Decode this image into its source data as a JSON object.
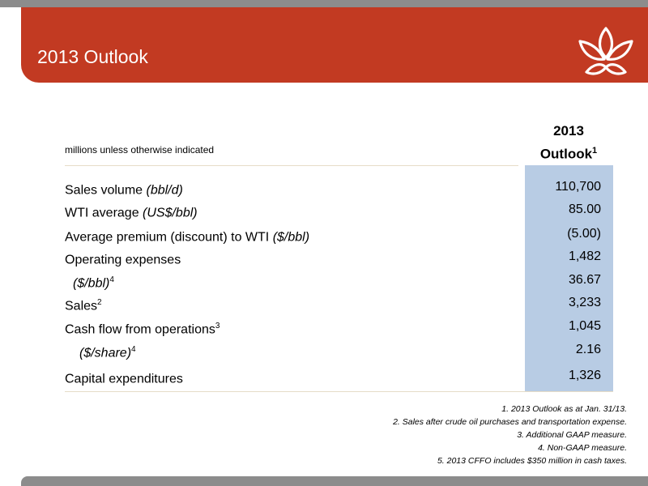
{
  "slide": {
    "title": "2013 Outlook"
  },
  "table": {
    "units_note": "millions unless otherwise indicated",
    "column_header": {
      "line1": "2013",
      "line2": "Outlook",
      "sup": "1"
    },
    "rows": [
      {
        "label": "Sales volume ",
        "label_em": "(bbl/d)",
        "sup": "",
        "value": "110,700"
      },
      {
        "label": "WTI average ",
        "label_em": "(US$/bbl)",
        "sup": "",
        "value": "85.00"
      },
      {
        "label": "Average premium (discount) to WTI ",
        "label_em": "($/bbl)",
        "sup": "",
        "value": "(5.00)"
      },
      {
        "label": "Operating expenses",
        "label_em": "",
        "sup": "",
        "value": "1,482"
      },
      {
        "label": "",
        "label_em": "($/bbl)",
        "sup": "4",
        "value": "36.67"
      },
      {
        "label": "Sales",
        "label_em": "",
        "sup": "2",
        "value": "3,233"
      },
      {
        "label": "Cash flow from operations",
        "label_em": "",
        "sup": "3",
        "value": "1,045"
      },
      {
        "label": "",
        "label_em": "($/share)",
        "sup": "4",
        "value": "2.16"
      },
      {
        "label": "Capital expenditures",
        "label_em": "",
        "sup": "",
        "value": "1,326"
      }
    ]
  },
  "footnotes": [
    "1. 2013 Outlook as at Jan. 31/13.",
    "2. Sales after crude oil purchases and transportation expense.",
    "3.   Additional GAAP measure.",
    "4.   Non-GAAP measure.",
    "5.   2013 CFFO includes $350 million in cash taxes."
  ],
  "colors": {
    "accent": "#c23a22",
    "grey_bar": "#8c8c8c",
    "column_fill": "#b8cce4"
  },
  "icons": {
    "logo": "lotus-logo-icon"
  }
}
